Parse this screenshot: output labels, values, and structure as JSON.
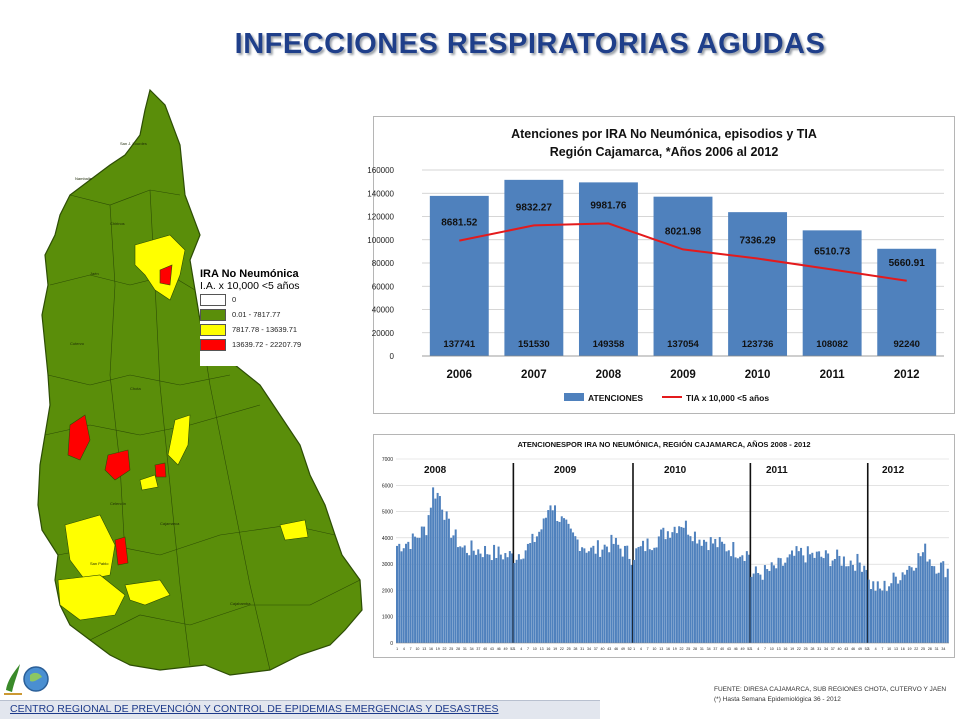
{
  "title": "INFECCIONES RESPIRATORIAS AGUDAS",
  "colors": {
    "bar": "#4f81bd",
    "line": "#e41a1c",
    "map_green": "#5a8e0a",
    "map_yellow": "#ffff00",
    "map_red": "#ff0000",
    "title": "#1f3f8a"
  },
  "map": {
    "legend_title": "IRA No Neumónica",
    "legend_subtitle": "I.A. x 10,000 <5 años",
    "legend_items": [
      {
        "label": "0",
        "color": "#ffffff"
      },
      {
        "label": "0.01 - 7817.77",
        "color": "#5a8e0a"
      },
      {
        "label": "7817.78 - 13639.71",
        "color": "#ffff00"
      },
      {
        "label": "13639.72 - 22207.79",
        "color": "#ff0000"
      }
    ]
  },
  "chart_data": [
    {
      "type": "bar",
      "title": "Atenciones por IRA No Neumónica, episodios y TIA",
      "subtitle": "Región Cajamarca, *Años 2006 al 2012",
      "categories": [
        "2006",
        "2007",
        "2008",
        "2009",
        "2010",
        "2011",
        "2012"
      ],
      "series": [
        {
          "name": "ATENCIONES",
          "type": "bar",
          "values": [
            137741,
            151530,
            149358,
            137054,
            123736,
            108082,
            92240
          ]
        },
        {
          "name": "TIA x 10,000 <5 años",
          "type": "line",
          "values": [
            8681.52,
            9832.27,
            9981.76,
            8021.98,
            7336.29,
            6510.73,
            5660.91
          ]
        }
      ],
      "ylim": [
        0,
        160000
      ],
      "yticks": [
        0,
        20000,
        40000,
        60000,
        80000,
        100000,
        120000,
        140000,
        160000
      ],
      "grid": true,
      "legend": "bottom"
    },
    {
      "type": "bar",
      "title": "ATENCIONESPOR IRA NO NEUMÓNICA, REGIÓN CAJAMARCA, AÑOS 2008 - 2012",
      "ylim": [
        0,
        7000
      ],
      "yticks": [
        0,
        1000,
        2000,
        3000,
        4000,
        5000,
        6000,
        7000
      ],
      "periods": [
        {
          "label": "2008",
          "weeks": 52
        },
        {
          "label": "2009",
          "weeks": 53
        },
        {
          "label": "2010",
          "weeks": 52
        },
        {
          "label": "2011",
          "weeks": 52
        },
        {
          "label": "2012",
          "weeks": 36
        }
      ],
      "period_trends": [
        {
          "label": "2008",
          "points": [
            [
              1,
              3700
            ],
            [
              8,
              3900
            ],
            [
              14,
              4400
            ],
            [
              17,
              5800
            ],
            [
              20,
              5600
            ],
            [
              24,
              4400
            ],
            [
              30,
              3600
            ],
            [
              40,
              3500
            ],
            [
              52,
              3300
            ]
          ]
        },
        {
          "label": "2009",
          "points": [
            [
              1,
              3300
            ],
            [
              8,
              3700
            ],
            [
              14,
              4500
            ],
            [
              17,
              5400
            ],
            [
              20,
              4900
            ],
            [
              26,
              4100
            ],
            [
              35,
              3500
            ],
            [
              45,
              3800
            ],
            [
              53,
              3300
            ]
          ]
        },
        {
          "label": "2010",
          "points": [
            [
              1,
              3400
            ],
            [
              8,
              3800
            ],
            [
              15,
              4200
            ],
            [
              22,
              4600
            ],
            [
              30,
              4000
            ],
            [
              40,
              3700
            ],
            [
              52,
              3400
            ]
          ]
        },
        {
          "label": "2011",
          "points": [
            [
              1,
              2600
            ],
            [
              8,
              2700
            ],
            [
              15,
              3000
            ],
            [
              22,
              3400
            ],
            [
              30,
              3300
            ],
            [
              40,
              3200
            ],
            [
              52,
              3000
            ]
          ]
        },
        {
          "label": "2012",
          "points": [
            [
              1,
              2300
            ],
            [
              6,
              2000
            ],
            [
              12,
              2400
            ],
            [
              20,
              3000
            ],
            [
              26,
              3500
            ],
            [
              30,
              3000
            ],
            [
              36,
              2800
            ]
          ]
        }
      ],
      "grid": true
    }
  ],
  "footer": {
    "center": "CENTRO REGIONAL DE PREVENCIÓN Y CONTROL DE EPIDEMIAS EMERGENCIAS Y DESASTRES",
    "source_line1": "FUENTE: DIRESA CAJAMARCA, SUB REGIONES CHOTA, CUTERVO Y JAEN",
    "source_line2": "(*) Hasta Semana Epidemiológica 36 - 2012"
  }
}
